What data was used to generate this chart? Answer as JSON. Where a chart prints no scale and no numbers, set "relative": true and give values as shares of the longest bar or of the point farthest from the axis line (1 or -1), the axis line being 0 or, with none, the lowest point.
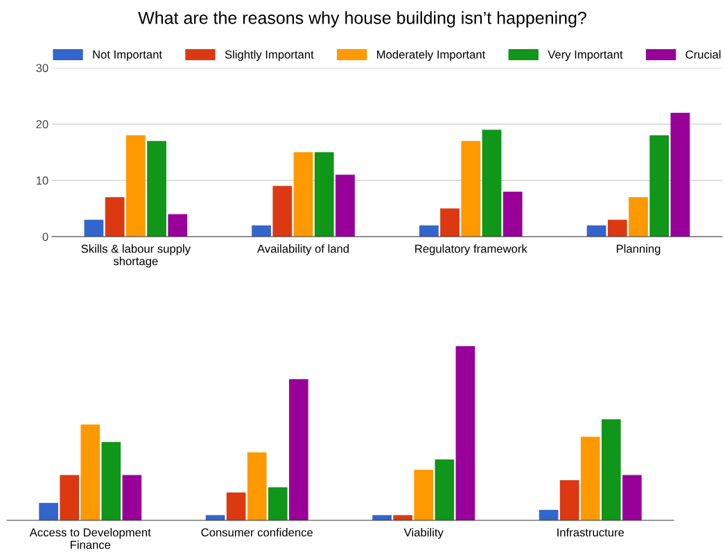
{
  "chart_data": [
    {
      "type": "bar",
      "title": "What are the reasons why house building isn’t happening?",
      "categories": [
        "Skills & labour supply\nshortage",
        "Availability of land",
        "Regulatory framework",
        "Planning"
      ],
      "series": [
        {
          "name": "Not Important",
          "color": "#3366cc",
          "values": [
            3,
            2,
            2,
            2
          ]
        },
        {
          "name": "Slightly Important",
          "color": "#dc3912",
          "values": [
            7,
            9,
            5,
            3
          ]
        },
        {
          "name": "Moderately Important",
          "color": "#ff9900",
          "values": [
            18,
            15,
            17,
            7
          ]
        },
        {
          "name": "Very Important",
          "color": "#109618",
          "values": [
            17,
            15,
            19,
            18
          ]
        },
        {
          "name": "Crucial",
          "color": "#990099",
          "values": [
            4,
            11,
            8,
            22
          ]
        }
      ],
      "ylim": [
        0,
        30
      ],
      "yticks": [
        0,
        10,
        20,
        30
      ],
      "grid": "y",
      "legend": "top"
    },
    {
      "type": "bar",
      "relative": true,
      "categories": [
        "Access to Development\nFinance",
        "Consumer confidence",
        "Viability",
        "Infrastructure"
      ],
      "series": [
        {
          "color": "#3366cc",
          "values": [
            0.1,
            0.03,
            0.03,
            0.06
          ]
        },
        {
          "color": "#dc3912",
          "values": [
            0.26,
            0.16,
            0.03,
            0.23
          ]
        },
        {
          "color": "#ff9900",
          "values": [
            0.55,
            0.39,
            0.29,
            0.48
          ]
        },
        {
          "color": "#109618",
          "values": [
            0.45,
            0.19,
            0.35,
            0.58
          ]
        },
        {
          "color": "#990099",
          "values": [
            0.26,
            0.81,
            1,
            0.26
          ]
        }
      ]
    }
  ]
}
